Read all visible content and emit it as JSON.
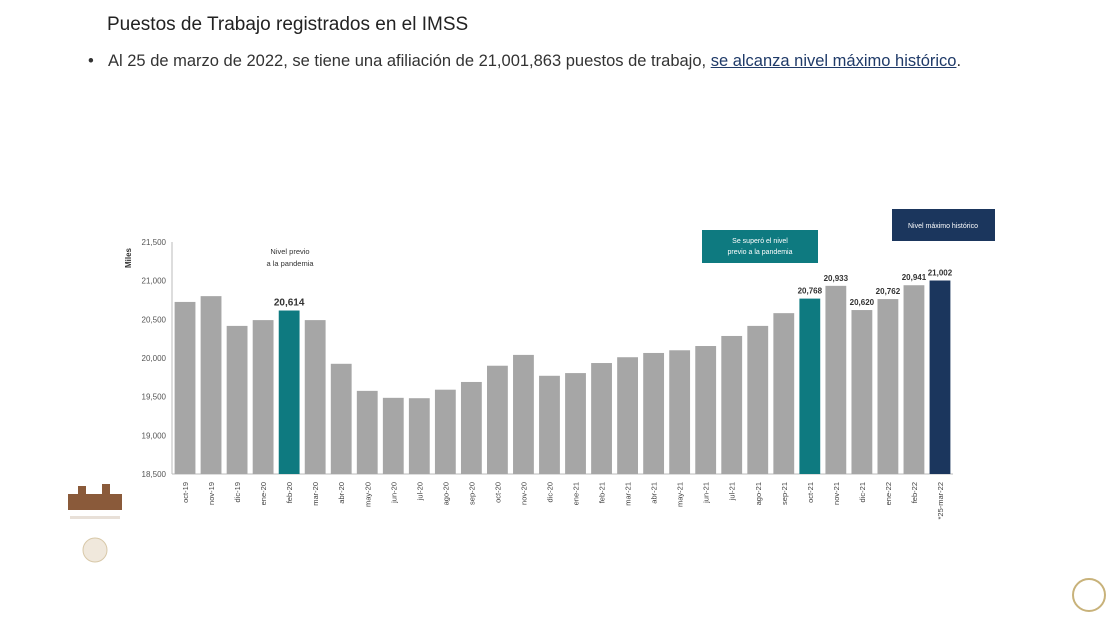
{
  "title": "Puestos de Trabajo registrados en el IMSS",
  "bullet": {
    "text": "Al 25 de marzo de 2022, se tiene una afiliación de 21,001,863 puestos de trabajo, ",
    "link": "se alcanza nivel máximo histórico",
    "end": "."
  },
  "chart_data": {
    "type": "bar",
    "ylabel": "Miles",
    "ylim": [
      18500,
      21500
    ],
    "yticks": [
      "18,500",
      "19,000",
      "19,500",
      "20,000",
      "20,500",
      "21,000",
      "21,500"
    ],
    "categories": [
      "oct-19",
      "nov-19",
      "dic-19",
      "ene-20",
      "feb-20",
      "mar-20",
      "abr-20",
      "may-20",
      "jun-20",
      "jul-20",
      "ago-20",
      "sep-20",
      "oct-20",
      "nov-20",
      "dic-20",
      "ene-21",
      "feb-21",
      "mar-21",
      "abr-21",
      "may-21",
      "jun-21",
      "jul-21",
      "ago-21",
      "sep-21",
      "oct-21",
      "nov-21",
      "dic-21",
      "ene-22",
      "feb-22",
      "*25-mar-22"
    ],
    "values": [
      20725,
      20800,
      20415,
      20490,
      20614,
      20490,
      19925,
      19575,
      19485,
      19480,
      19590,
      19690,
      19900,
      20040,
      19770,
      19805,
      19935,
      20010,
      20065,
      20100,
      20155,
      20285,
      20415,
      20580,
      20768,
      20933,
      20620,
      20762,
      20941,
      21002
    ],
    "data_labels": {
      "4": "20,614",
      "24": "20,768",
      "25": "20,933",
      "26": "20,620",
      "27": "20,762",
      "28": "20,941",
      "29": "21,002"
    },
    "colors": {
      "default": "#a6a6a6",
      "feb-20": "#0e7a80",
      "oct-21": "#0e7a80",
      "*25-mar-22": "#1b365d"
    },
    "annotations": [
      {
        "text": [
          "Nivel previo",
          "a la pandemia"
        ],
        "style": "plain"
      },
      {
        "text": [
          "Se superó el nivel",
          "previo a la pandemia"
        ],
        "style": "teal-box"
      },
      {
        "text": [
          "Nivel máximo histórico"
        ],
        "style": "navy-box"
      }
    ],
    "grid": false
  }
}
